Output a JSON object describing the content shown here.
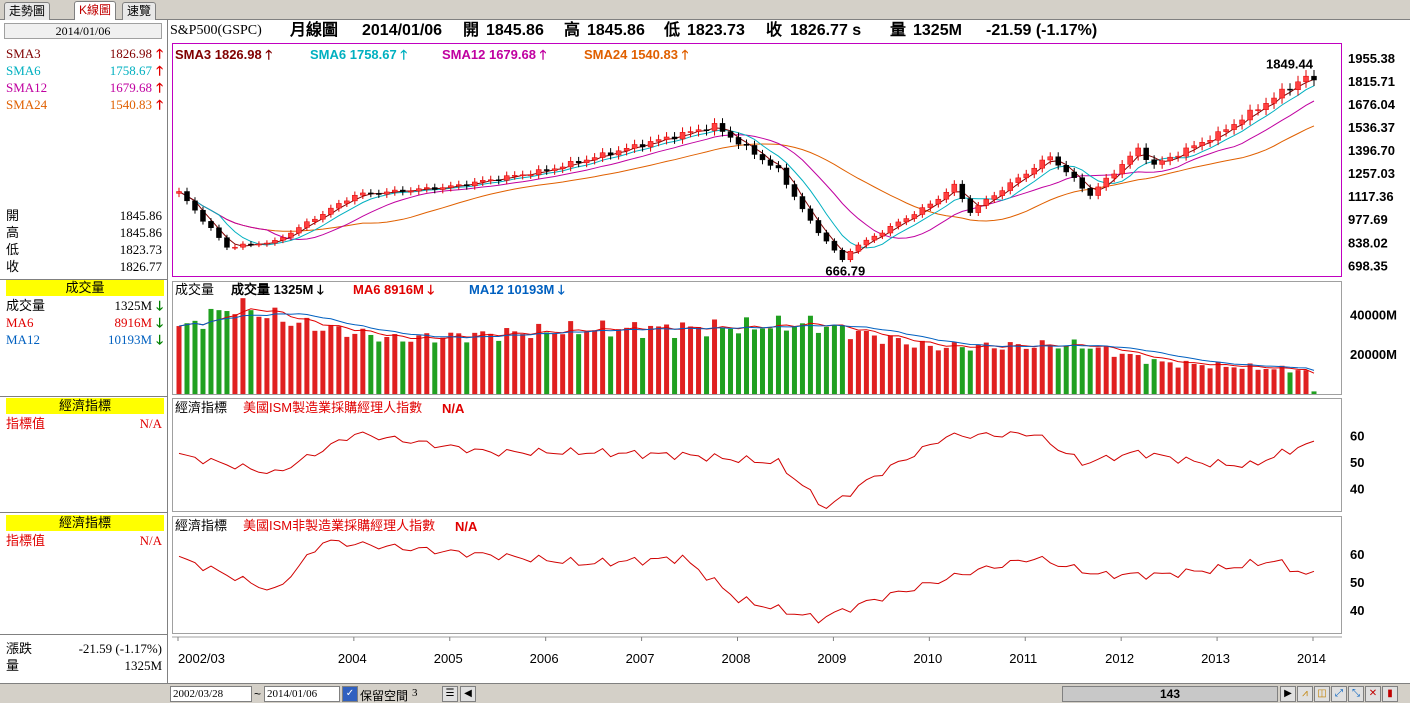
{
  "tabs": [
    {
      "label": "走勢圖",
      "active": false
    },
    {
      "label": "K線圖",
      "active": true
    },
    {
      "label": "速覽",
      "active": false
    }
  ],
  "left_panel": {
    "date": "2014/01/06",
    "sma": [
      {
        "label": "SMA3",
        "value": "1826.98",
        "color": "#800000"
      },
      {
        "label": "SMA6",
        "value": "1758.67",
        "color": "#00b0c0"
      },
      {
        "label": "SMA12",
        "value": "1679.68",
        "color": "#c000a0"
      },
      {
        "label": "SMA24",
        "value": "1540.83",
        "color": "#e06000"
      }
    ],
    "ohlc": [
      {
        "label": "開",
        "value": "1845.86"
      },
      {
        "label": "高",
        "value": "1845.86"
      },
      {
        "label": "低",
        "value": "1823.73"
      },
      {
        "label": "收",
        "value": "1826.77"
      }
    ],
    "volume_head": "成交量",
    "volume_rows": [
      {
        "label": "成交量",
        "value": "1325M",
        "color": "#000000"
      },
      {
        "label": "MA6",
        "value": "8916M",
        "color": "#e00000"
      },
      {
        "label": "MA12",
        "value": "10193M",
        "color": "#0060c0"
      }
    ],
    "econ1": {
      "head": "經濟指標",
      "label": "指標值",
      "value": "N/A"
    },
    "econ2": {
      "head": "經濟指標",
      "label": "指標值",
      "value": "N/A"
    },
    "change_label": "漲跌",
    "change_value": "-21.59 (-1.17%)",
    "volume_label": "量",
    "volume_value": "1325M"
  },
  "header": {
    "symbol": "S&P500(GSPC)",
    "period": "月線圖",
    "date": "2014/01/06",
    "open_label": "開",
    "open": "1845.86",
    "high_label": "高",
    "high": "1845.86",
    "low_label": "低",
    "low": "1823.73",
    "close_label": "收",
    "close": "1826.77 s",
    "vol_label": "量",
    "vol": "1325M",
    "change": "-21.59 (-1.17%)"
  },
  "price_panel": {
    "legend": [
      {
        "label": "SMA3 1826.98",
        "color": "#800000"
      },
      {
        "label": "SMA6 1758.67",
        "color": "#00b0c0"
      },
      {
        "label": "SMA12 1679.68",
        "color": "#c000a0"
      },
      {
        "label": "SMA24 1540.83",
        "color": "#e06000"
      }
    ],
    "y_ticks": [
      "1955.38",
      "1815.71",
      "1676.04",
      "1536.37",
      "1396.70",
      "1257.03",
      "1117.36",
      "977.69",
      "838.02",
      "698.35"
    ],
    "high_annotation": "1849.44",
    "low_annotation": "666.79"
  },
  "volume_panel": {
    "title": "成交量",
    "legend": [
      {
        "label": "成交量 1325M",
        "color": "#000000"
      },
      {
        "label": "MA6 8916M",
        "color": "#e00000"
      },
      {
        "label": "MA12 10193M",
        "color": "#0060c0"
      }
    ],
    "y_ticks": [
      "40000M",
      "20000M"
    ]
  },
  "econ_panel_1": {
    "title": "經濟指標",
    "indicator": "美國ISM製造業採購經理人指數",
    "value": "N/A",
    "y_ticks": [
      "60",
      "50",
      "40"
    ]
  },
  "econ_panel_2": {
    "title": "經濟指標",
    "indicator": "美國ISM非製造業採購經理人指數",
    "value": "N/A",
    "y_ticks": [
      "60",
      "50",
      "40"
    ]
  },
  "x_axis": [
    "2002/03",
    "2004",
    "2005",
    "2006",
    "2007",
    "2008",
    "2009",
    "2010",
    "2011",
    "2012",
    "2013",
    "2014"
  ],
  "bottom_bar": {
    "start_date": "2002/03/28",
    "tilde": "~",
    "end_date": "2014/01/06",
    "reserve_label": "保留空間",
    "reserve_value": "3",
    "scroll_value": "143"
  },
  "chart_data": [
    {
      "type": "candlestick",
      "title": "S&P500(GSPC) 月線圖",
      "x_range": [
        "2002/03",
        "2014/01"
      ],
      "ylim": [
        640,
        1960
      ],
      "anchor_points": [
        {
          "date": "2002/03",
          "close": 1147
        },
        {
          "date": "2002/09",
          "close": 815
        },
        {
          "date": "2003/03",
          "close": 848
        },
        {
          "date": "2004/01",
          "close": 1131
        },
        {
          "date": "2005/01",
          "close": 1181
        },
        {
          "date": "2006/01",
          "close": 1280
        },
        {
          "date": "2007/01",
          "close": 1438
        },
        {
          "date": "2007/10",
          "close": 1549
        },
        {
          "date": "2008/06",
          "close": 1280
        },
        {
          "date": "2008/10",
          "close": 968
        },
        {
          "date": "2009/02",
          "close": 735
        },
        {
          "date": "2009/03",
          "close": 798
        },
        {
          "date": "2010/01",
          "close": 1074
        },
        {
          "date": "2010/04",
          "close": 1187
        },
        {
          "date": "2010/06",
          "close": 1031
        },
        {
          "date": "2011/04",
          "close": 1364
        },
        {
          "date": "2011/09",
          "close": 1131
        },
        {
          "date": "2012/03",
          "close": 1408
        },
        {
          "date": "2012/05",
          "close": 1310
        },
        {
          "date": "2013/01",
          "close": 1498
        },
        {
          "date": "2013/12",
          "close": 1848
        },
        {
          "date": "2014/01",
          "close": 1827
        }
      ],
      "series": [
        {
          "name": "SMA3",
          "last": 1826.98
        },
        {
          "name": "SMA6",
          "last": 1758.67
        },
        {
          "name": "SMA12",
          "last": 1679.68
        },
        {
          "name": "SMA24",
          "last": 1540.83
        }
      ],
      "annotations": [
        {
          "label": "1849.44",
          "date": "2013/12"
        },
        {
          "label": "666.79",
          "date": "2009/03"
        }
      ]
    },
    {
      "type": "bar",
      "title": "成交量",
      "ylim": [
        0,
        50000
      ],
      "unit": "M",
      "anchor_points": [
        {
          "date": "2002/03",
          "volume": 33000
        },
        {
          "date": "2002/10",
          "volume": 45000
        },
        {
          "date": "2003/06",
          "volume": 36000
        },
        {
          "date": "2004/06",
          "volume": 28000
        },
        {
          "date": "2006/06",
          "volume": 33000
        },
        {
          "date": "2008/01",
          "volume": 34000
        },
        {
          "date": "2008/10",
          "volume": 36000
        },
        {
          "date": "2010/01",
          "volume": 24000
        },
        {
          "date": "2011/08",
          "volume": 25000
        },
        {
          "date": "2012/06",
          "volume": 16000
        },
        {
          "date": "2013/12",
          "volume": 12000
        },
        {
          "date": "2014/01",
          "volume": 1325
        }
      ],
      "series": [
        {
          "name": "MA6",
          "last": 8916
        },
        {
          "name": "MA12",
          "last": 10193
        }
      ]
    },
    {
      "type": "line",
      "title": "美國ISM製造業採購經理人指數",
      "ylim": [
        32,
        68
      ],
      "anchor_points": [
        {
          "date": "2002/03",
          "value": 53
        },
        {
          "date": "2003/03",
          "value": 46
        },
        {
          "date": "2004/01",
          "value": 61
        },
        {
          "date": "2005/06",
          "value": 54
        },
        {
          "date": "2006/06",
          "value": 54
        },
        {
          "date": "2007/06",
          "value": 53
        },
        {
          "date": "2008/06",
          "value": 50
        },
        {
          "date": "2008/12",
          "value": 33
        },
        {
          "date": "2009/06",
          "value": 45
        },
        {
          "date": "2010/03",
          "value": 60
        },
        {
          "date": "2011/02",
          "value": 61
        },
        {
          "date": "2011/08",
          "value": 50
        },
        {
          "date": "2012/03",
          "value": 54
        },
        {
          "date": "2012/11",
          "value": 50
        },
        {
          "date": "2013/05",
          "value": 49
        },
        {
          "date": "2013/12",
          "value": 57
        }
      ]
    },
    {
      "type": "line",
      "title": "美國ISM非製造業採購經理人指數",
      "ylim": [
        32,
        68
      ],
      "anchor_points": [
        {
          "date": "2002/03",
          "value": 59
        },
        {
          "date": "2003/03",
          "value": 47
        },
        {
          "date": "2003/09",
          "value": 65
        },
        {
          "date": "2005/06",
          "value": 60
        },
        {
          "date": "2006/06",
          "value": 57
        },
        {
          "date": "2007/06",
          "value": 59
        },
        {
          "date": "2008/01",
          "value": 44
        },
        {
          "date": "2008/11",
          "value": 37
        },
        {
          "date": "2009/06",
          "value": 44
        },
        {
          "date": "2010/06",
          "value": 54
        },
        {
          "date": "2011/02",
          "value": 59
        },
        {
          "date": "2011/10",
          "value": 53
        },
        {
          "date": "2012/06",
          "value": 53
        },
        {
          "date": "2013/01",
          "value": 55
        },
        {
          "date": "2013/08",
          "value": 58
        },
        {
          "date": "2013/12",
          "value": 53
        }
      ]
    }
  ]
}
